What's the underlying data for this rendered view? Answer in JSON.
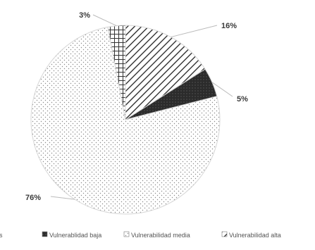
{
  "chart_data": {
    "type": "pie",
    "categories": [
      "Sin vulnerabilidades",
      "Vulnerablidad baja",
      "Vulnerabilidad media",
      "Vulnerabilidad alta"
    ],
    "legend_labels": [
      "es",
      "Vulnerablidad baja",
      "Vulnerabilidad media",
      "Vulnerabilidad alta"
    ],
    "values": [
      3,
      5,
      76,
      16
    ],
    "data_labels": [
      "3%",
      "5%",
      "76%",
      "16%"
    ],
    "patterns": [
      "grid",
      "solid-dark",
      "dots",
      "diagonal-hatch"
    ],
    "legend_position": "bottom",
    "title": ""
  }
}
